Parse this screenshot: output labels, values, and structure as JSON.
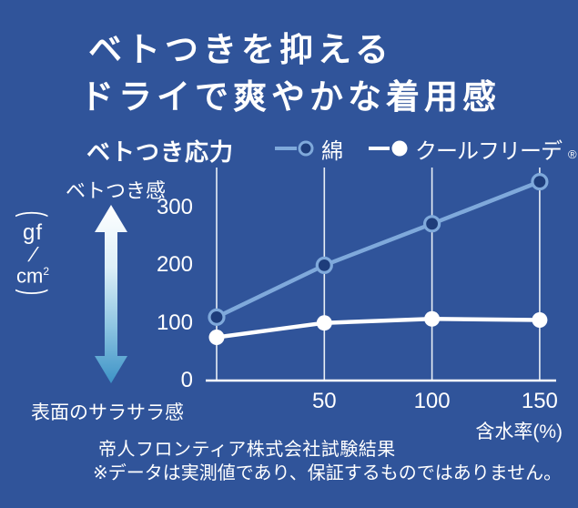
{
  "title": {
    "line1": "ベトつきを抑える",
    "line2": "ドライで爽やかな着用感"
  },
  "legend": {
    "heading": "ベトつき応力",
    "items": [
      {
        "label": "綿",
        "marker": "open-circle",
        "color": "#7fa9db",
        "marker_fill": "#1e3d7b"
      },
      {
        "label": "クールフリーデ",
        "registered_mark": "®",
        "marker": "filled-circle",
        "color": "#ffffff",
        "marker_fill": "#ffffff"
      }
    ]
  },
  "axis_annotations": {
    "top_label": "ベトつき感",
    "bottom_label": "表面のサラサラ感",
    "arrow_icon": "double-headed-vertical-arrow"
  },
  "y_axis_unit": {
    "paren_open": "(",
    "numerator": "gf",
    "slash": "/",
    "denominator": "cm",
    "exponent": "2",
    "paren_close": ")"
  },
  "chart_data": {
    "type": "line",
    "title": "ベトつき応力",
    "x": [
      0,
      50,
      100,
      150
    ],
    "xtick_labels": [
      "",
      "50",
      "100",
      "150"
    ],
    "xlabel": "含水率(%)",
    "ylabel": "(gf/cm²)",
    "yticks": [
      0,
      100,
      200,
      300
    ],
    "ylim": [
      0,
      370
    ],
    "grid": "vertical-only",
    "legend_position": "top",
    "series": [
      {
        "name": "綿",
        "values": [
          110,
          200,
          272,
          345
        ],
        "color": "#7fa9db",
        "marker": "open-circle",
        "marker_fill": "#1e3d7b"
      },
      {
        "name": "クールフリーデ®",
        "values": [
          75,
          100,
          107,
          105
        ],
        "color": "#ffffff",
        "marker": "filled-circle",
        "marker_fill": "#ffffff"
      }
    ]
  },
  "footer": {
    "source": "帝人フロンティア株式会社試験結果",
    "note": "※データは実測値であり、保証するものではありません。"
  },
  "colors": {
    "background": "#30549a",
    "text": "#ffffff",
    "gridline": "#e8eef6",
    "axis_line": "#ffffff",
    "cotton_line": "#7fa9db",
    "cotton_marker_fill": "#1e3d7b",
    "coolfriede_line": "#ffffff",
    "arrow_top": "#ffffff",
    "arrow_mid1": "#ddeff8",
    "arrow_mid2": "#8ec5e2",
    "arrow_bottom": "#3d93c6"
  }
}
